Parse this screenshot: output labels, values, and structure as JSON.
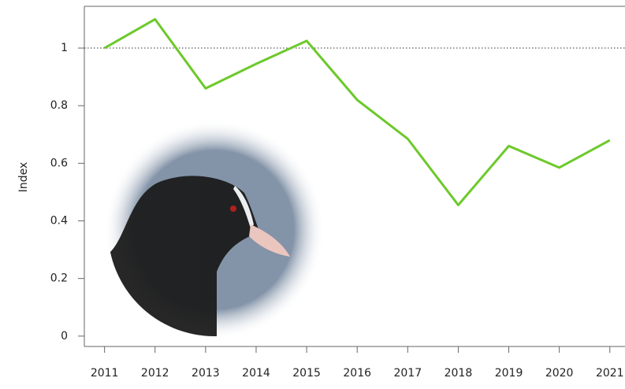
{
  "chart_data": {
    "type": "line",
    "y_label": "Index",
    "x": [
      2011,
      2012,
      2013,
      2014,
      2015,
      2016,
      2017,
      2018,
      2019,
      2020,
      2021
    ],
    "series": [
      {
        "color": "#6cc92a",
        "values": [
          1.0,
          1.1,
          0.86,
          0.945,
          1.025,
          0.82,
          0.685,
          0.455,
          0.66,
          0.585,
          0.68
        ]
      }
    ],
    "xlim": [
      2010.6,
      2021.3
    ],
    "xticks": [
      2011,
      2012,
      2013,
      2014,
      2015,
      2016,
      2017,
      2018,
      2019,
      2020,
      2021
    ],
    "ylim": [
      -0.036,
      1.145
    ],
    "yticks": [
      0,
      0.2,
      0.4,
      0.6,
      0.8,
      1
    ],
    "hline": 1
  }
}
